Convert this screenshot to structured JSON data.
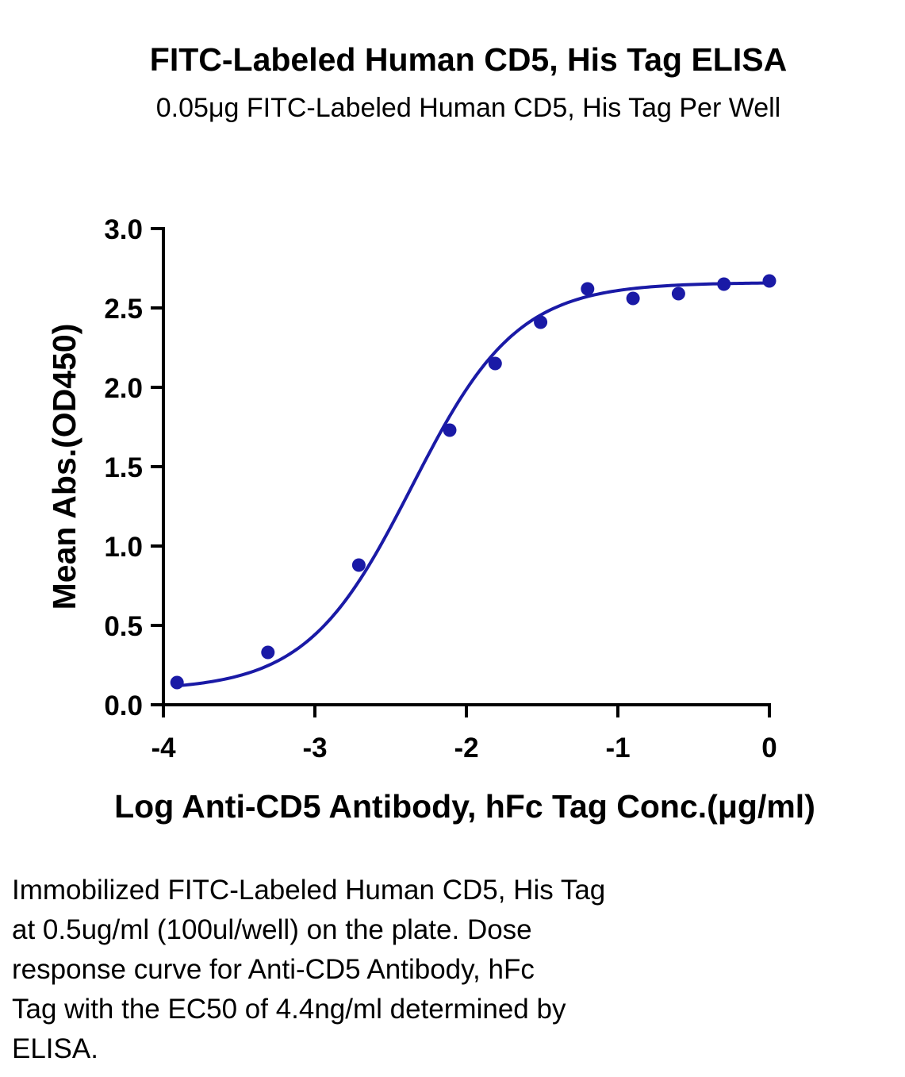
{
  "chart_data": {
    "type": "scatter",
    "title": "FITC-Labeled Human CD5, His Tag ELISA",
    "subtitle": "0.05μg FITC-Labeled Human CD5, His Tag Per Well",
    "xlabel": "Log Anti-CD5 Antibody, hFc Tag Conc.(μg/ml)",
    "ylabel": "Mean Abs.(OD450)",
    "xlim": [
      -4,
      0
    ],
    "ylim": [
      0,
      3.0
    ],
    "x_ticks": [
      "-4",
      "-3",
      "-2",
      "-1",
      "0"
    ],
    "y_ticks": [
      "0.0",
      "0.5",
      "1.0",
      "1.5",
      "2.0",
      "2.5",
      "3.0"
    ],
    "grid": false,
    "series": [
      {
        "points": [
          {
            "x": -3.91,
            "y": 0.14
          },
          {
            "x": -3.31,
            "y": 0.33
          },
          {
            "x": -2.71,
            "y": 0.88
          },
          {
            "x": -2.11,
            "y": 1.73
          },
          {
            "x": -1.81,
            "y": 2.15
          },
          {
            "x": -1.51,
            "y": 2.41
          },
          {
            "x": -1.2,
            "y": 2.62
          },
          {
            "x": -0.9,
            "y": 2.56
          },
          {
            "x": -0.6,
            "y": 2.59
          },
          {
            "x": -0.3,
            "y": 2.65
          },
          {
            "x": 0.0,
            "y": 2.67
          }
        ],
        "fit": {
          "bottom": 0.09,
          "top": 2.66,
          "log_ec50": -2.36,
          "hill": 1.25
        }
      }
    ]
  },
  "colors": {
    "series": "#1a1aa6",
    "axis": "#000000"
  },
  "caption": "Immobilized FITC-Labeled Human CD5, His Tag\nat 0.5ug/ml (100ul/well) on the plate. Dose\nresponse curve for Anti-CD5 Antibody, hFc\nTag with the EC50 of 4.4ng/ml determined by\nELISA."
}
